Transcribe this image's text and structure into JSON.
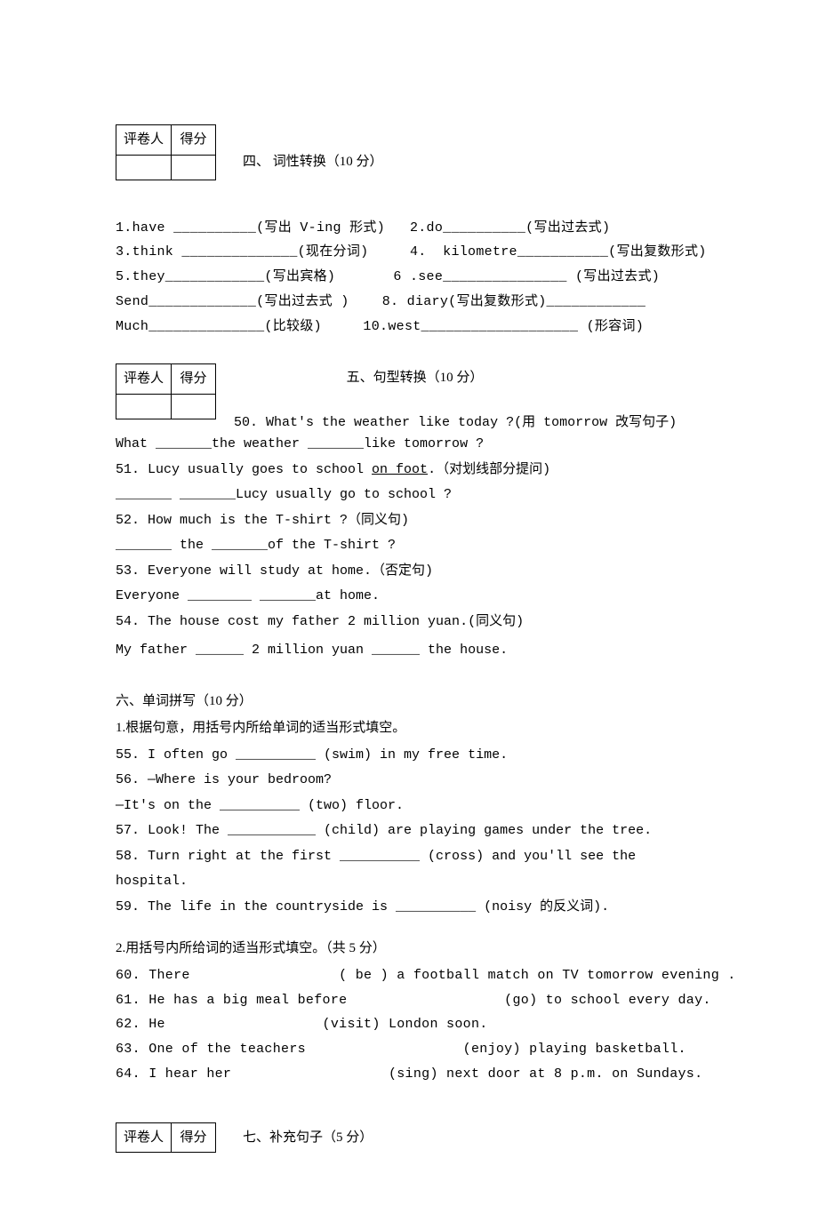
{
  "scoreBox": {
    "header1": "评卷人",
    "header2": "得分"
  },
  "section4": {
    "title": "四、 词性转换（10 分）",
    "lines": [
      "1.have __________(写出 V-ing 形式)   2.do__________(写出过去式)",
      "3.think ______________(现在分词)     4.  kilometre___________(写出复数形式)",
      "5.they____________(写出宾格)       6 .see_______________ (写出过去式)",
      "Send_____________(写出过去式 )    8. diary(写出复数形式)____________",
      "Much______________(比较级)     10.west___________________ (形容词)"
    ]
  },
  "section5": {
    "title": "五、句型转换（10 分）",
    "firstQuestion": "50. What's the weather like today ?(用 tomorrow 改写句子)",
    "lines": [
      "What _______the weather _______like tomorrow ?",
      "51. Lucy usually goes to school <u>on foot</u>.（对划线部分提问)",
      "_______ _______Lucy usually go to school ?",
      "52. How much is the T-shirt ?（同义句)",
      "_______ the _______of the T-shirt ?",
      "53. Everyone will study at home.（否定句)",
      "Everyone ________ _______at home.",
      "54. The house cost my father 2 million yuan.(同义句)",
      "My father ______ 2 million yuan ______ the house."
    ]
  },
  "section6": {
    "title": "六、单词拼写（10 分）",
    "part1": {
      "heading": "1.根据句意，用括号内所给单词的适当形式填空。",
      "lines": [
        "55. I often go __________ (swim) in my free time.",
        "56. —Where is your bedroom?",
        "—It's on the __________ (two) floor.",
        "57. Look! The ___________ (child) are playing games under the tree.",
        "58. Turn right at the first __________ (cross) and you'll see the hospital.",
        "59. The life in the countryside is __________ (noisy 的反义词)."
      ]
    },
    "part2": {
      "heading": "2.用括号内所给词的适当形式填空。（共 5 分）",
      "lines": [
        "60. There                  ( be ) a football match on TV tomorrow evening .",
        "61. He has a big meal before                   (go) to school every day.",
        "62. He                   (visit) London soon.",
        "63. One of the teachers                   (enjoy) playing basketball.",
        "64. I hear her                   (sing) next door at 8 p.m. on Sundays."
      ]
    }
  },
  "section7": {
    "title": "七、补充句子（5 分）"
  }
}
